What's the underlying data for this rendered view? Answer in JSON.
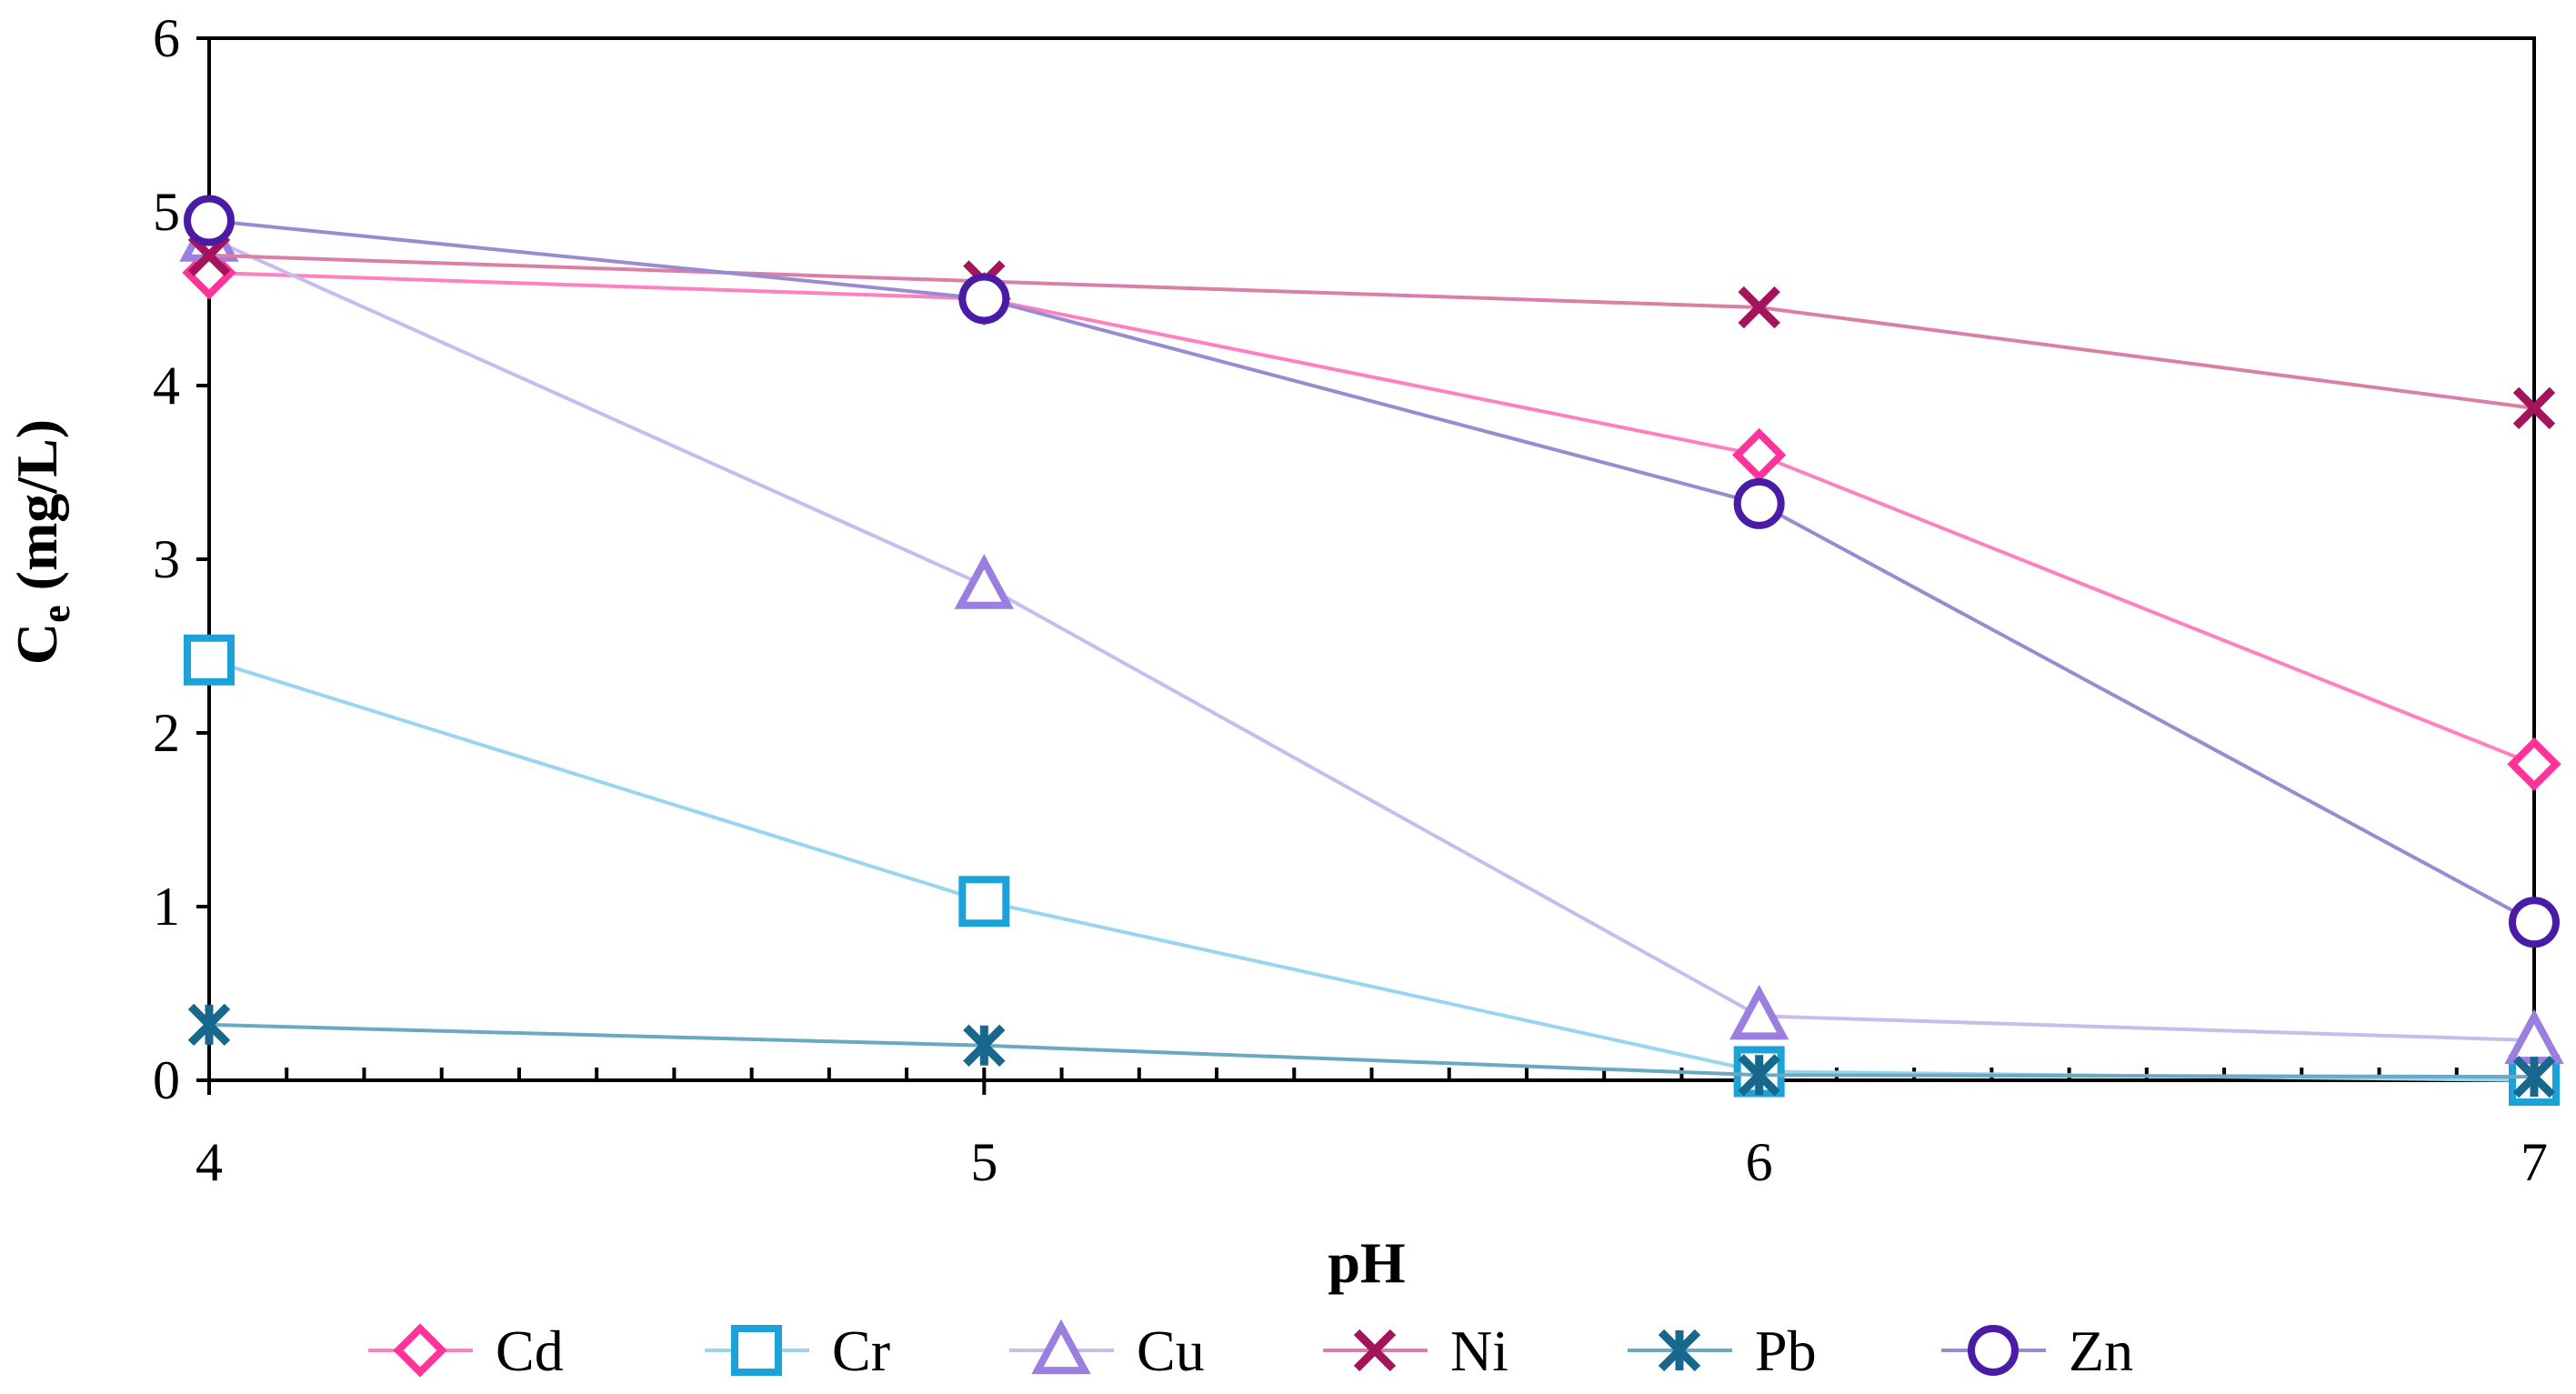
{
  "chart_data": {
    "type": "line",
    "title": "",
    "xlabel": "pH",
    "ylabel": {
      "main": "C",
      "subscript": "e",
      "suffix": " (mg/L)"
    },
    "x": [
      4,
      5,
      6,
      7
    ],
    "xticks": [
      "4",
      "5",
      "6",
      "7"
    ],
    "yticks": [
      "0",
      "1",
      "2",
      "3",
      "4",
      "5",
      "6"
    ],
    "xlim": [
      4,
      7
    ],
    "ylim": [
      0,
      6
    ],
    "grid": false,
    "legend_position": "bottom",
    "series": [
      {
        "name": "Cd",
        "values": [
          4.65,
          4.5,
          3.6,
          1.82
        ],
        "color": "#FF80C0",
        "marker_color": "#FF3399",
        "marker": "diamond"
      },
      {
        "name": "Cr",
        "values": [
          2.42,
          1.03,
          0.05,
          0.0
        ],
        "color": "#99D4F0",
        "marker_color": "#1BA3D9",
        "marker": "square"
      },
      {
        "name": "Cu",
        "values": [
          4.85,
          2.85,
          0.37,
          0.23
        ],
        "color": "#C9BCEC",
        "marker_color": "#9B7FE0",
        "marker": "triangle"
      },
      {
        "name": "Ni",
        "values": [
          4.75,
          4.6,
          4.45,
          3.87
        ],
        "color": "#D97FA8",
        "marker_color": "#A3145A",
        "marker": "x"
      },
      {
        "name": "Pb",
        "values": [
          0.32,
          0.2,
          0.03,
          0.02
        ],
        "color": "#6BA9C2",
        "marker_color": "#17688C",
        "marker": "asterisk"
      },
      {
        "name": "Zn",
        "values": [
          4.95,
          4.5,
          3.32,
          0.91
        ],
        "color": "#9A8BD0",
        "marker_color": "#4A1CA6",
        "marker": "circle"
      }
    ]
  }
}
